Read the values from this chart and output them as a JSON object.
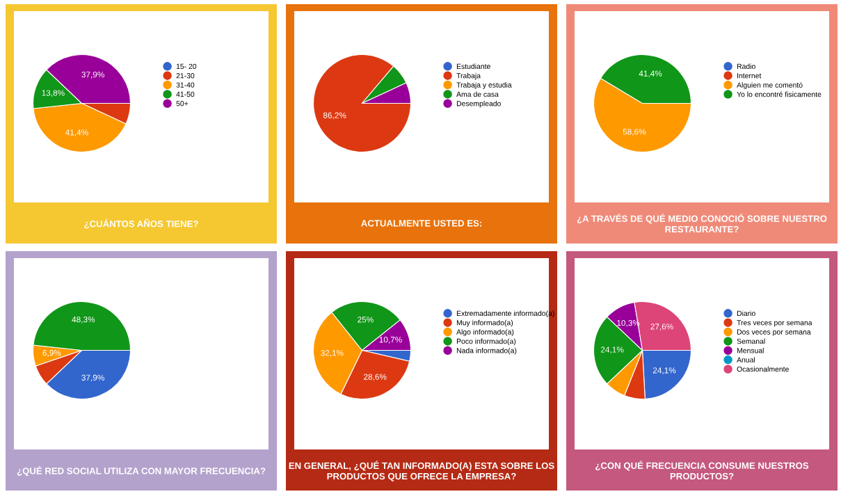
{
  "chart_data": [
    {
      "type": "pie",
      "title": "¿CUÁNTOS AÑOS TIENE?",
      "categories": [
        "15- 20",
        "21-30",
        "31-40",
        "41-50",
        "50+"
      ],
      "values": [
        0,
        6.9,
        41.4,
        13.8,
        37.9
      ],
      "colors": [
        "#3366cc",
        "#dc3912",
        "#ff9900",
        "#109618",
        "#990099"
      ],
      "value_labels": [
        null,
        null,
        "41,4%",
        "13,8%",
        "37,9%"
      ],
      "legend": "right"
    },
    {
      "type": "pie",
      "title": "ACTUALMENTE USTED ES:",
      "categories": [
        "Estudiante",
        "Trabaja",
        "Trabaja y estudia",
        "Ama de casa",
        "Desempleado"
      ],
      "values": [
        0,
        86.2,
        0,
        6.9,
        6.9
      ],
      "colors": [
        "#3366cc",
        "#dc3912",
        "#ff9900",
        "#109618",
        "#990099"
      ],
      "value_labels": [
        null,
        "86,2%",
        null,
        null,
        null
      ],
      "legend": "right"
    },
    {
      "type": "pie",
      "title": "¿A TRAVÉS DE QUÉ MEDIO CONOCIÓ SOBRE NUESTRO\nRESTAURANTE?",
      "categories": [
        "Radio",
        "Internet",
        "Alguien me comentó",
        "Yo lo encontré fisicamente"
      ],
      "values": [
        0,
        0,
        58.6,
        41.4
      ],
      "colors": [
        "#3366cc",
        "#dc3912",
        "#ff9900",
        "#109618"
      ],
      "value_labels": [
        null,
        null,
        "58,6%",
        "41,4%"
      ],
      "legend": "right"
    },
    {
      "type": "pie",
      "title": "¿QUÉ RED SOCIAL UTILIZA CON MAYOR FRECUENCIA?",
      "categories": [
        null,
        null,
        null,
        null
      ],
      "values": [
        37.9,
        6.9,
        6.9,
        48.3
      ],
      "colors": [
        "#3366cc",
        "#dc3912",
        "#ff9900",
        "#109618"
      ],
      "value_labels": [
        "37,9%",
        null,
        "6,9%",
        "48,3%"
      ]
    },
    {
      "type": "pie",
      "title": "EN GENERAL, ¿QUÉ TAN INFORMADO(A) ESTA SOBRE LOS\nPRODUCTOS QUE OFRECE LA EMPRESA?",
      "categories": [
        "Extremadamente informado(a)",
        "Muy informado(a)",
        "Algo informado(a)",
        "Poco informado(a)",
        "Nada informado(a)"
      ],
      "values": [
        3.6,
        28.6,
        32.1,
        25,
        10.7
      ],
      "colors": [
        "#3366cc",
        "#dc3912",
        "#ff9900",
        "#109618",
        "#990099"
      ],
      "value_labels": [
        null,
        "28,6%",
        "32,1%",
        "25%",
        "10,7%"
      ],
      "legend": "right"
    },
    {
      "type": "pie",
      "title": "¿CON QUÉ FRECUENCIA CONSUME NUESTROS\nPRODUCTOS?",
      "categories": [
        "Diario",
        "Tres veces por semana",
        "Dos veces por semana",
        "Semanal",
        "Mensual",
        "Anual",
        "Ocasionalmente"
      ],
      "values": [
        24.1,
        6.9,
        6.9,
        24.1,
        10.3,
        0,
        27.6
      ],
      "colors": [
        "#3366cc",
        "#dc3912",
        "#ff9900",
        "#109618",
        "#990099",
        "#0099c6",
        "#dd4477"
      ],
      "value_labels": [
        "24,1%",
        null,
        null,
        "24,1%",
        "10,3%",
        null,
        "27,6%"
      ],
      "legend": "right"
    }
  ]
}
